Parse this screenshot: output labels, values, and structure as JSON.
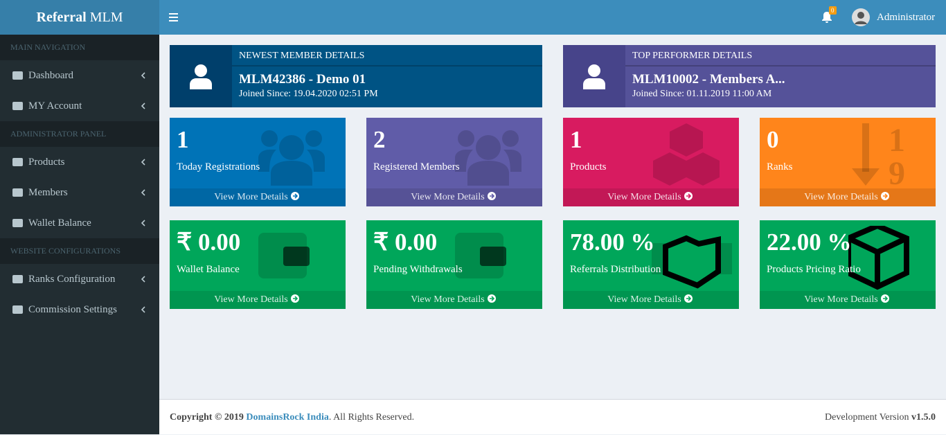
{
  "brand": {
    "bold": "Referral",
    "rest": "MLM"
  },
  "topbar": {
    "notifications": "0",
    "user": "Administrator"
  },
  "sidebar": {
    "sections": [
      {
        "header": "MAIN NAVIGATION",
        "items": [
          "Dashboard",
          "MY Account"
        ]
      },
      {
        "header": "ADMINISTRATOR PANEL",
        "items": [
          "Products",
          "Members",
          "Wallet Balance"
        ]
      },
      {
        "header": "WEBSITE CONFIGURATIONS",
        "items": [
          "Ranks Configuration",
          "Commission Settings"
        ]
      }
    ]
  },
  "profiles": [
    {
      "heading": "NEWEST MEMBER DETAILS",
      "name": "MLM42386 - Demo 01",
      "joined": "Joined Since: 19.04.2020 02:51 PM"
    },
    {
      "heading": "TOP PERFORMER DETAILS",
      "name": "MLM10002 - Members A...",
      "joined": "Joined Since: 01.11.2019 11:00 AM"
    }
  ],
  "boxes": [
    {
      "value": "1",
      "label": "Today Registrations",
      "link": "View More Details"
    },
    {
      "value": "2",
      "label": "Registered Members",
      "link": "View More Details"
    },
    {
      "value": "1",
      "label": "Products",
      "link": "View More Details"
    },
    {
      "value": "0",
      "label": "Ranks",
      "link": "View More Details"
    },
    {
      "value": "₹ 0.00",
      "label": "Wallet Balance",
      "link": "View More Details"
    },
    {
      "value": "₹ 0.00",
      "label": "Pending Withdrawals",
      "link": "View More Details"
    },
    {
      "value": "78.00 %",
      "label": "Referrals Distribution",
      "link": "View More Details"
    },
    {
      "value": "22.00 %",
      "label": "Products Pricing Ratio",
      "link": "View More Details"
    }
  ],
  "footer": {
    "copyright": "Copyright © 2019",
    "company": "DomainsRock India",
    "rights": ". All Rights Reserved.",
    "version_label": "Development Version",
    "version": "v1.5.0"
  }
}
